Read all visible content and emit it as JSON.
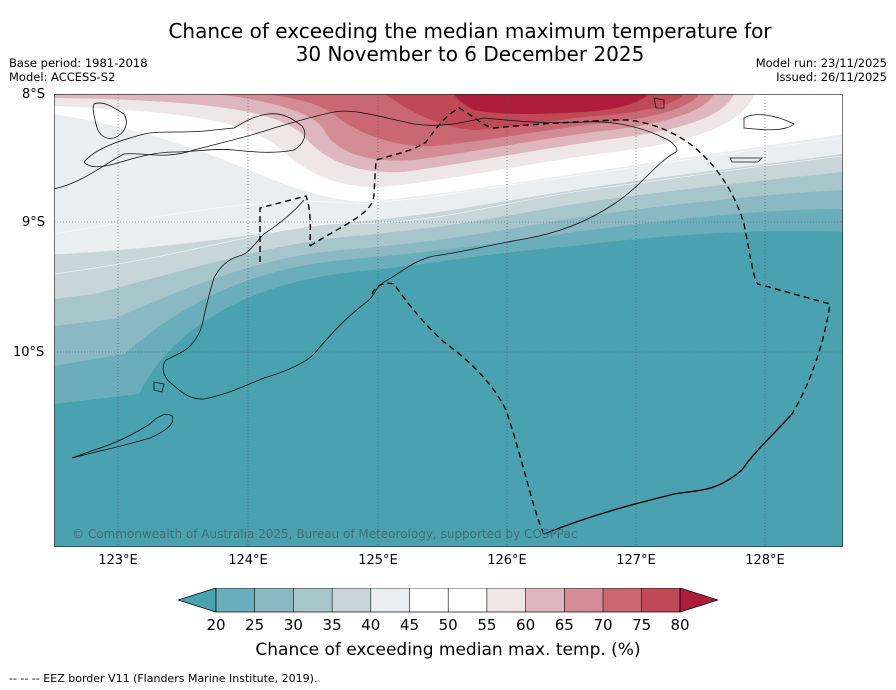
{
  "title_line1": "Chance of exceeding the median maximum temperature for",
  "title_line2": "30 November to 6 December 2025",
  "base_period": "Base period: 1981-2018",
  "model": "Model: ACCESS-S2",
  "model_run": "Model run: 23/11/2025",
  "issued": "Issued: 26/11/2025",
  "copyright": "© Commonwealth of Australia 2025, Bureau of Meteorology, supported by COSPPac",
  "footer": "--  --  -- EEZ border V11 (Flanders Marine Institute, 2019).",
  "map": {
    "lat_labels": [
      "8°S",
      "9°S",
      "10°S"
    ],
    "lon_labels": [
      "123°E",
      "124°E",
      "125°E",
      "126°E",
      "127°E",
      "128°E"
    ],
    "lat_values": [
      -8,
      -9,
      -10
    ],
    "lon_values": [
      123,
      124,
      125,
      126,
      127,
      128
    ],
    "lon_range": [
      122.5,
      128.6
    ],
    "lat_range": [
      -11.5,
      -8.0
    ]
  },
  "colorbar": {
    "label": "Chance of exceeding median max. temp. (%)",
    "ticks": [
      "20",
      "25",
      "30",
      "35",
      "40",
      "45",
      "50",
      "55",
      "60",
      "65",
      "70",
      "75",
      "80"
    ],
    "colors": {
      "under": "#4aa2b1",
      "c20": "#6aaebb",
      "c25": "#8ab8c3",
      "c30": "#a6c6cc",
      "c35": "#c8d6da",
      "c40": "#e9eef1",
      "c45": "#ffffff",
      "c50": "#ffffff",
      "c55": "#efe7e7",
      "c60": "#ddb7bd",
      "c65": "#d38c94",
      "c70": "#c96872",
      "c75": "#bf4957",
      "over": "#af1c3b"
    }
  }
}
